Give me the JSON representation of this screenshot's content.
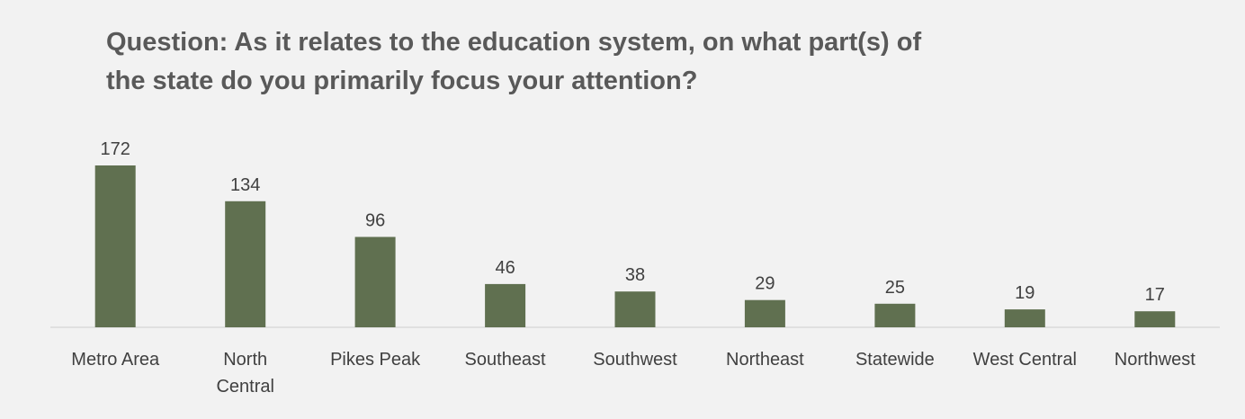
{
  "chart_data": {
    "type": "bar",
    "title_lines": [
      "Question: As it relates to the education system, on what part(s) of",
      "the state do you primarily focus your attention?"
    ],
    "categories": [
      [
        "Metro Area"
      ],
      [
        "North",
        "Central"
      ],
      [
        "Pikes Peak"
      ],
      [
        "Southeast"
      ],
      [
        "Southwest"
      ],
      [
        "Northeast"
      ],
      [
        "Statewide"
      ],
      [
        "West Central"
      ],
      [
        "Northwest"
      ]
    ],
    "values": [
      172,
      134,
      96,
      46,
      38,
      29,
      25,
      19,
      17
    ],
    "data_labels": [
      "172",
      "134",
      "96",
      "46",
      "38",
      "29",
      "25",
      "19",
      "17"
    ],
    "bar_color": "#607050",
    "axis_color": "#d9d9d9",
    "grid": false,
    "legend": "none",
    "ylim": [
      0,
      172
    ]
  }
}
